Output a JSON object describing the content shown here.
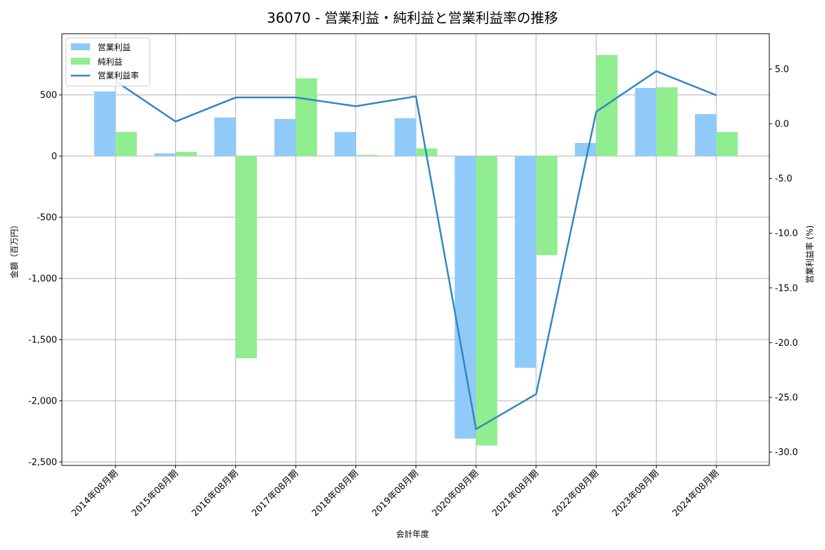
{
  "chart_data": {
    "type": "bar+line",
    "title": "36070 - 営業利益・純利益と営業利益率の推移",
    "xlabel": "会計年度",
    "ylabel_left": "金額（百万円）",
    "ylabel_right": "営業利益率 (%)",
    "categories": [
      "2014年08月期",
      "2015年08月期",
      "2016年08月期",
      "2017年08月期",
      "2018年08月期",
      "2019年08月期",
      "2020年08月期",
      "2021年08月期",
      "2022年08月期",
      "2023年08月期",
      "2024年08月期"
    ],
    "series": [
      {
        "name": "営業利益",
        "type": "bar",
        "axis": "left",
        "color": "#90caf9",
        "values": [
          528,
          22,
          315,
          303,
          197,
          309,
          -2309,
          -1730,
          107,
          556,
          343
        ]
      },
      {
        "name": "純利益",
        "type": "bar",
        "axis": "left",
        "color": "#90ee90",
        "values": [
          197,
          34,
          -1652,
          635,
          10,
          62,
          -2365,
          -809,
          826,
          562,
          197
        ]
      },
      {
        "name": "営業利益率",
        "type": "line",
        "axis": "right",
        "color": "#2e86c1",
        "values": [
          3.9,
          0.2,
          2.4,
          2.4,
          1.6,
          2.5,
          -27.9,
          -24.7,
          1.1,
          4.8,
          2.6
        ]
      }
    ],
    "left_ticks": [
      500,
      0,
      -500,
      -1000,
      -1500,
      -2000,
      -2500
    ],
    "left_tick_labels": [
      "500",
      "0",
      "-500",
      "-1,000",
      "-1,500",
      "-2,000",
      "-2,500"
    ],
    "right_ticks": [
      5,
      0,
      -5,
      -10,
      -15,
      -20,
      -25,
      -30
    ],
    "right_tick_labels": [
      "5.0",
      "0.0",
      "-5.0",
      "-10.0",
      "-15.0",
      "-20.0",
      "-25.0",
      "-30.0"
    ],
    "ylim_left": [
      -2530,
      960
    ],
    "ylim_right": [
      -31.25,
      8.1
    ],
    "grid": true,
    "legend_position": "upper left"
  }
}
